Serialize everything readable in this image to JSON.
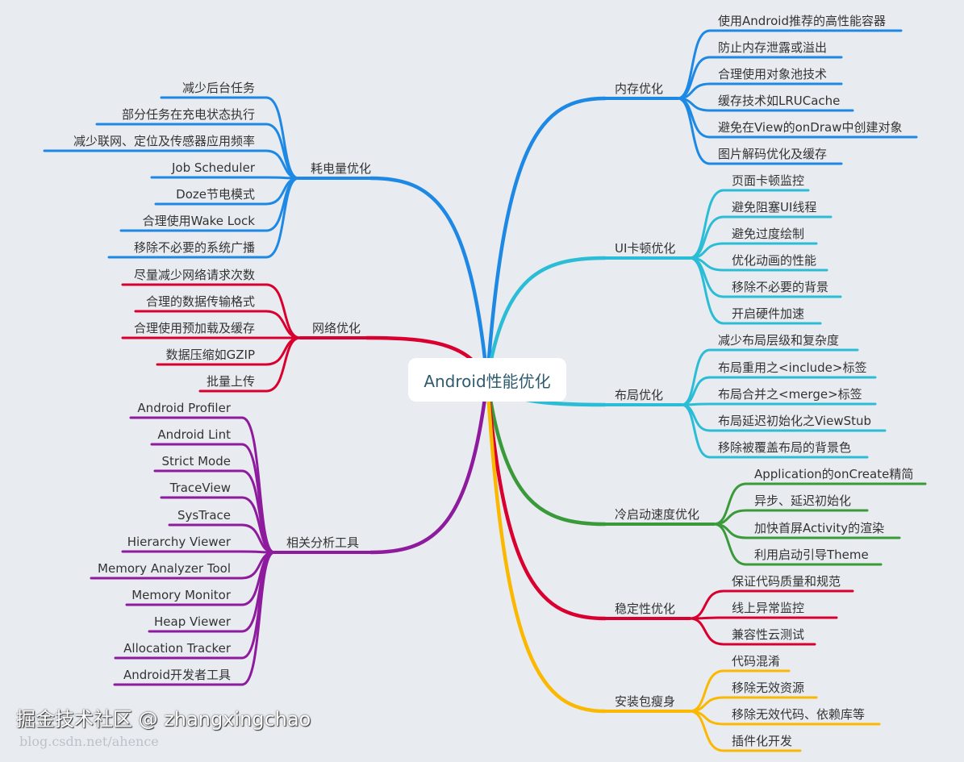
{
  "title": "Android性能优化",
  "branches": [
    {
      "label": "内存优化",
      "color": "#1e88e5",
      "side": "right",
      "children": [
        "使用Android推荐的高性能容器",
        "防止内存泄露或溢出",
        "合理使用对象池技术",
        "缓存技术如LRUCache",
        "避免在View的onDraw中创建对象",
        "图片解码优化及缓存"
      ]
    },
    {
      "label": "UI卡顿优化",
      "color": "#2bbcd6",
      "side": "right",
      "children": [
        "页面卡顿监控",
        "避免阻塞UI线程",
        "避免过度绘制",
        "优化动画的性能",
        "移除不必要的背景",
        "开启硬件加速"
      ]
    },
    {
      "label": "布局优化",
      "color": "#2bbcd6",
      "side": "right",
      "children": [
        "减少布局层级和复杂度",
        "布局重用之<include>标签",
        "布局合并之<merge>标签",
        "布局延迟初始化之ViewStub",
        "移除被覆盖布局的背景色"
      ]
    },
    {
      "label": "冷启动速度优化",
      "color": "#3a9a3a",
      "side": "right",
      "children": [
        "Application的onCreate精简",
        "异步、延迟初始化",
        "加快首屏Activity的渲染",
        "利用启动引导Theme"
      ]
    },
    {
      "label": "稳定性优化",
      "color": "#d9002f",
      "side": "right",
      "children": [
        "保证代码质量和规范",
        "线上异常监控",
        "兼容性云测试"
      ]
    },
    {
      "label": "安装包瘦身",
      "color": "#fbb800",
      "side": "right",
      "children": [
        "代码混淆",
        "移除无效资源",
        "移除无效代码、依赖库等",
        "插件化开发"
      ]
    },
    {
      "label": "耗电量优化",
      "color": "#1e88e5",
      "side": "left",
      "children": [
        "减少后台任务",
        "部分任务在充电状态执行",
        "减少联网、定位及传感器应用频率",
        "Job Scheduler",
        "Doze节电模式",
        "合理使用Wake Lock",
        "移除不必要的系统广播"
      ]
    },
    {
      "label": "网络优化",
      "color": "#d9002f",
      "side": "left",
      "children": [
        "尽量减少网络请求次数",
        "合理的数据传输格式",
        "合理使用预加载及缓存",
        "数据压缩如GZIP",
        "批量上传"
      ]
    },
    {
      "label": "相关分析工具",
      "color": "#8e1a9e",
      "side": "left",
      "children": [
        "Android Profiler",
        "Android Lint",
        "Strict Mode",
        "TraceView",
        "SysTrace",
        "Hierarchy Viewer",
        "Memory Analyzer Tool",
        "Memory Monitor",
        "Heap Viewer",
        "Allocation Tracker",
        "Android开发者工具"
      ]
    }
  ],
  "watermark": {
    "text": "掘金技术社区 @ zhangxingchao",
    "url": "blog.csdn.net/ahence"
  }
}
